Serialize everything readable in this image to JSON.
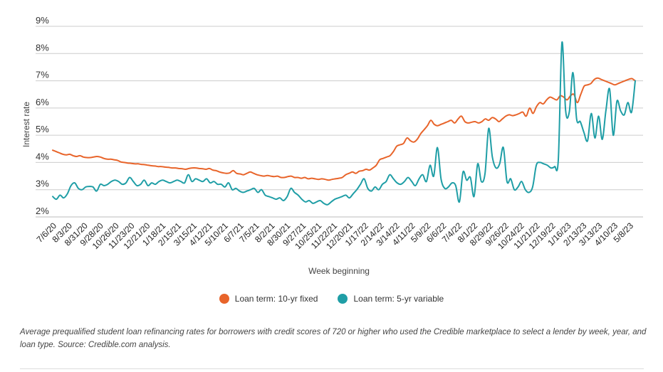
{
  "chart_data": {
    "type": "line",
    "ylabel": "Interest rate",
    "xlabel": "Week beginning",
    "ylim": [
      2,
      9
    ],
    "yticks": [
      "2%",
      "3%",
      "4%",
      "5%",
      "6%",
      "7%",
      "8%",
      "9%"
    ],
    "xtick_labels": [
      "7/6/20",
      "8/3/20",
      "8/31/20",
      "9/28/20",
      "10/26/20",
      "11/23/20",
      "12/21/20",
      "1/18/21",
      "2/15/21",
      "3/15/21",
      "4/12/21",
      "5/10/21",
      "6/7/21",
      "7/5/21",
      "8/2/21",
      "8/30/21",
      "9/27/21",
      "10/25/21",
      "11/22/21",
      "12/20/21",
      "1/17/22",
      "2/14/22",
      "3/14/22",
      "4/11/22",
      "5/9/22",
      "6/6/22",
      "7/4/22",
      "8/1/22",
      "8/29/22",
      "9/26/22",
      "10/24/22",
      "11/21/22",
      "12/19/22",
      "1/16/23",
      "2/13/23",
      "3/13/23",
      "4/10/23",
      "5/8/23"
    ],
    "grid": true,
    "legend_position": "bottom-center",
    "series": [
      {
        "name": "Loan term: 10-yr fixed",
        "color": "#e8642a",
        "values": [
          4.45,
          4.4,
          4.35,
          4.3,
          4.28,
          4.3,
          4.25,
          4.22,
          4.25,
          4.2,
          4.18,
          4.18,
          4.2,
          4.22,
          4.2,
          4.15,
          4.12,
          4.12,
          4.1,
          4.08,
          4.02,
          4.0,
          3.98,
          3.97,
          3.95,
          3.95,
          3.93,
          3.92,
          3.9,
          3.88,
          3.87,
          3.85,
          3.85,
          3.83,
          3.82,
          3.8,
          3.8,
          3.78,
          3.77,
          3.75,
          3.78,
          3.8,
          3.8,
          3.78,
          3.77,
          3.75,
          3.78,
          3.72,
          3.7,
          3.65,
          3.62,
          3.6,
          3.62,
          3.7,
          3.6,
          3.58,
          3.55,
          3.6,
          3.65,
          3.6,
          3.55,
          3.52,
          3.5,
          3.52,
          3.5,
          3.48,
          3.5,
          3.45,
          3.45,
          3.48,
          3.5,
          3.45,
          3.45,
          3.42,
          3.45,
          3.4,
          3.42,
          3.4,
          3.38,
          3.4,
          3.38,
          3.35,
          3.38,
          3.4,
          3.42,
          3.45,
          3.55,
          3.6,
          3.65,
          3.6,
          3.68,
          3.7,
          3.75,
          3.72,
          3.8,
          3.9,
          4.1,
          4.15,
          4.2,
          4.25,
          4.4,
          4.6,
          4.65,
          4.7,
          4.9,
          4.8,
          4.75,
          4.85,
          5.05,
          5.2,
          5.35,
          5.55,
          5.4,
          5.35,
          5.4,
          5.45,
          5.5,
          5.55,
          5.45,
          5.6,
          5.7,
          5.5,
          5.45,
          5.48,
          5.5,
          5.45,
          5.5,
          5.6,
          5.55,
          5.65,
          5.6,
          5.5,
          5.6,
          5.7,
          5.75,
          5.72,
          5.75,
          5.8,
          5.85,
          5.7,
          6.0,
          5.8,
          6.05,
          6.2,
          6.15,
          6.3,
          6.4,
          6.35,
          6.3,
          6.45,
          6.4,
          6.3,
          6.45,
          6.5,
          6.2,
          6.5,
          6.8,
          6.85,
          6.9,
          7.05,
          7.1,
          7.05,
          7.0,
          6.95,
          6.9,
          6.85,
          6.9,
          6.95,
          7.0,
          7.05,
          7.08,
          7.0
        ]
      },
      {
        "name": "Loan term: 5-yr variable",
        "color": "#1f9ea6",
        "values": [
          2.75,
          2.65,
          2.8,
          2.7,
          2.85,
          3.15,
          3.25,
          3.05,
          3.0,
          3.1,
          3.12,
          3.1,
          2.95,
          3.2,
          3.15,
          3.2,
          3.3,
          3.35,
          3.3,
          3.2,
          3.25,
          3.45,
          3.3,
          3.15,
          3.2,
          3.35,
          3.15,
          3.25,
          3.2,
          3.3,
          3.35,
          3.3,
          3.25,
          3.3,
          3.35,
          3.3,
          3.25,
          3.55,
          3.3,
          3.4,
          3.35,
          3.3,
          3.4,
          3.25,
          3.3,
          3.2,
          3.2,
          3.1,
          3.25,
          3.0,
          3.05,
          2.95,
          2.9,
          2.95,
          3.0,
          3.05,
          2.9,
          3.0,
          2.8,
          2.75,
          2.7,
          2.65,
          2.7,
          2.6,
          2.75,
          3.05,
          2.9,
          2.8,
          2.65,
          2.55,
          2.6,
          2.5,
          2.55,
          2.6,
          2.5,
          2.45,
          2.55,
          2.65,
          2.7,
          2.75,
          2.8,
          2.7,
          2.85,
          3.0,
          3.2,
          3.4,
          3.05,
          2.95,
          3.1,
          3.0,
          3.2,
          3.3,
          3.55,
          3.4,
          3.25,
          3.2,
          3.3,
          3.45,
          3.3,
          3.15,
          3.4,
          3.55,
          3.3,
          3.9,
          3.5,
          4.55,
          3.4,
          3.05,
          3.1,
          3.25,
          3.15,
          2.55,
          3.65,
          3.35,
          3.45,
          2.75,
          3.95,
          3.3,
          3.6,
          5.25,
          4.2,
          3.8,
          3.95,
          4.55,
          3.3,
          3.4,
          3.0,
          3.1,
          3.3,
          3.0,
          2.9,
          3.1,
          3.9,
          4.0,
          3.95,
          3.9,
          3.8,
          3.85,
          4.1,
          8.4,
          5.9,
          5.85,
          7.3,
          5.6,
          5.5,
          5.1,
          4.8,
          5.8,
          4.9,
          5.7,
          4.85,
          5.9,
          6.7,
          5.0,
          6.25,
          5.9,
          5.75,
          6.2,
          5.85,
          7.0
        ]
      }
    ]
  },
  "legend": {
    "items": [
      {
        "label": "Loan term: 10-yr fixed",
        "color": "#e8642a"
      },
      {
        "label": "Loan term: 5-yr variable",
        "color": "#1f9ea6"
      }
    ]
  },
  "caption": "Average prequalified student loan refinancing rates for borrowers with credit scores of 720 or higher who used the Credible marketplace to select a lender by week, year, and loan type. Source: Credible.com analysis."
}
